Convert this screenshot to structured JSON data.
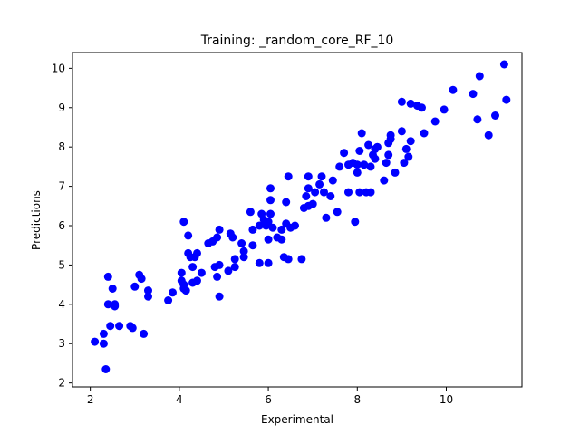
{
  "chart_data": {
    "type": "scatter",
    "title": "Training: _random_core_RF_10",
    "xlabel": "Experimental",
    "ylabel": "Predictions",
    "xlim": [
      1.6,
      11.7
    ],
    "ylim": [
      1.9,
      10.4
    ],
    "x_ticks": [
      2,
      4,
      6,
      8,
      10
    ],
    "y_ticks": [
      2,
      3,
      4,
      5,
      6,
      7,
      8,
      9,
      10
    ],
    "x_tick_labels": [
      "2",
      "4",
      "6",
      "8",
      "10"
    ],
    "y_tick_labels": [
      "2",
      "3",
      "4",
      "5",
      "6",
      "7",
      "8",
      "9",
      "10"
    ],
    "grid": false,
    "marker_color": "#0000ff",
    "points": [
      [
        2.1,
        3.05
      ],
      [
        2.3,
        3.0
      ],
      [
        2.3,
        3.25
      ],
      [
        2.35,
        2.35
      ],
      [
        2.4,
        4.0
      ],
      [
        2.4,
        4.7
      ],
      [
        2.45,
        3.45
      ],
      [
        2.5,
        4.4
      ],
      [
        2.55,
        3.95
      ],
      [
        2.55,
        4.0
      ],
      [
        2.65,
        3.45
      ],
      [
        2.9,
        3.45
      ],
      [
        2.95,
        3.4
      ],
      [
        3.0,
        4.45
      ],
      [
        3.1,
        4.75
      ],
      [
        3.15,
        4.65
      ],
      [
        3.2,
        3.25
      ],
      [
        3.3,
        4.2
      ],
      [
        3.3,
        4.35
      ],
      [
        3.75,
        4.1
      ],
      [
        3.85,
        4.3
      ],
      [
        4.05,
        4.8
      ],
      [
        4.05,
        4.6
      ],
      [
        4.1,
        4.4
      ],
      [
        4.1,
        4.5
      ],
      [
        4.1,
        6.1
      ],
      [
        4.15,
        4.35
      ],
      [
        4.2,
        5.3
      ],
      [
        4.2,
        5.75
      ],
      [
        4.25,
        5.2
      ],
      [
        4.3,
        4.55
      ],
      [
        4.3,
        4.95
      ],
      [
        4.35,
        5.2
      ],
      [
        4.4,
        4.6
      ],
      [
        4.4,
        5.3
      ],
      [
        4.5,
        4.8
      ],
      [
        4.65,
        5.55
      ],
      [
        4.75,
        5.6
      ],
      [
        4.8,
        4.95
      ],
      [
        4.85,
        4.7
      ],
      [
        4.85,
        5.7
      ],
      [
        4.9,
        5.0
      ],
      [
        4.9,
        5.9
      ],
      [
        4.9,
        4.2
      ],
      [
        5.1,
        4.85
      ],
      [
        5.15,
        5.8
      ],
      [
        5.2,
        5.7
      ],
      [
        5.25,
        5.15
      ],
      [
        5.25,
        4.95
      ],
      [
        5.4,
        5.55
      ],
      [
        5.45,
        5.35
      ],
      [
        5.45,
        5.2
      ],
      [
        5.6,
        6.35
      ],
      [
        5.65,
        5.5
      ],
      [
        5.65,
        5.9
      ],
      [
        5.8,
        6.0
      ],
      [
        5.8,
        5.05
      ],
      [
        5.85,
        6.3
      ],
      [
        5.9,
        6.15
      ],
      [
        5.95,
        6.0
      ],
      [
        6.0,
        5.65
      ],
      [
        6.0,
        5.05
      ],
      [
        6.0,
        6.1
      ],
      [
        6.05,
        6.95
      ],
      [
        6.05,
        6.3
      ],
      [
        6.05,
        6.65
      ],
      [
        6.1,
        5.95
      ],
      [
        6.2,
        5.7
      ],
      [
        6.3,
        5.9
      ],
      [
        6.3,
        5.65
      ],
      [
        6.35,
        5.2
      ],
      [
        6.4,
        6.05
      ],
      [
        6.4,
        6.6
      ],
      [
        6.45,
        7.25
      ],
      [
        6.45,
        5.15
      ],
      [
        6.5,
        5.95
      ],
      [
        6.6,
        6.0
      ],
      [
        6.75,
        5.15
      ],
      [
        6.8,
        6.45
      ],
      [
        6.85,
        6.75
      ],
      [
        6.9,
        6.95
      ],
      [
        6.9,
        7.25
      ],
      [
        6.9,
        6.5
      ],
      [
        7.0,
        6.55
      ],
      [
        7.05,
        6.85
      ],
      [
        7.15,
        7.05
      ],
      [
        7.2,
        7.25
      ],
      [
        7.25,
        6.85
      ],
      [
        7.3,
        6.2
      ],
      [
        7.4,
        6.75
      ],
      [
        7.45,
        7.15
      ],
      [
        7.55,
        6.35
      ],
      [
        7.6,
        7.5
      ],
      [
        7.7,
        7.85
      ],
      [
        7.8,
        6.85
      ],
      [
        7.8,
        7.55
      ],
      [
        7.9,
        7.6
      ],
      [
        7.95,
        6.1
      ],
      [
        8.0,
        7.35
      ],
      [
        8.0,
        7.55
      ],
      [
        8.05,
        7.9
      ],
      [
        8.05,
        6.85
      ],
      [
        8.1,
        8.35
      ],
      [
        8.15,
        7.55
      ],
      [
        8.2,
        6.85
      ],
      [
        8.25,
        8.05
      ],
      [
        8.3,
        6.85
      ],
      [
        8.3,
        7.5
      ],
      [
        8.35,
        7.8
      ],
      [
        8.4,
        7.95
      ],
      [
        8.4,
        7.7
      ],
      [
        8.45,
        8.0
      ],
      [
        8.6,
        7.15
      ],
      [
        8.65,
        7.6
      ],
      [
        8.7,
        8.1
      ],
      [
        8.7,
        7.8
      ],
      [
        8.75,
        8.3
      ],
      [
        8.75,
        8.2
      ],
      [
        8.85,
        7.35
      ],
      [
        9.0,
        8.4
      ],
      [
        9.0,
        9.15
      ],
      [
        9.05,
        7.6
      ],
      [
        9.1,
        7.95
      ],
      [
        9.15,
        7.75
      ],
      [
        9.2,
        8.15
      ],
      [
        9.2,
        9.1
      ],
      [
        9.35,
        9.05
      ],
      [
        9.45,
        9.0
      ],
      [
        9.5,
        8.35
      ],
      [
        9.75,
        8.65
      ],
      [
        9.95,
        8.95
      ],
      [
        10.15,
        9.45
      ],
      [
        10.6,
        9.35
      ],
      [
        10.7,
        8.7
      ],
      [
        10.75,
        9.8
      ],
      [
        10.95,
        8.3
      ],
      [
        11.1,
        8.8
      ],
      [
        11.3,
        10.1
      ],
      [
        11.35,
        9.2
      ]
    ]
  }
}
